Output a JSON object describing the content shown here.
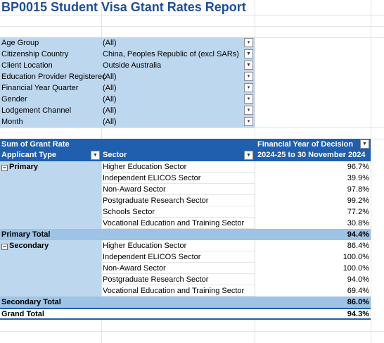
{
  "title": "BP0015 Student Visa Gtant Rates Report",
  "filters": [
    {
      "label": "Age Group",
      "value": "(All)",
      "button_icon": "dropdown-arrow-icon"
    },
    {
      "label": "Citizenship Country",
      "value": "China, Peoples Republic of (excl SARs)",
      "button_icon": "filter-applied-icon"
    },
    {
      "label": "Client Location",
      "value": "Outside Australia",
      "button_icon": "filter-applied-icon"
    },
    {
      "label": "Education Provider Registerec",
      "value": "(All)",
      "button_icon": "dropdown-arrow-icon"
    },
    {
      "label": "Financial Year Quarter",
      "value": "(All)",
      "button_icon": "dropdown-arrow-icon"
    },
    {
      "label": "Gender",
      "value": "(All)",
      "button_icon": "dropdown-arrow-icon"
    },
    {
      "label": "Lodgement Channel",
      "value": "(All)",
      "button_icon": "dropdown-arrow-icon"
    },
    {
      "label": "Month",
      "value": "(All)",
      "button_icon": "dropdown-arrow-icon"
    }
  ],
  "pivot": {
    "measure": "Sum of Grant Rate",
    "col_field": "Financial Year of Decision",
    "row_field_1": "Applicant Type",
    "row_field_2": "Sector",
    "col_value": "2024-25 to 30 November 2024",
    "groups": [
      {
        "name": "Primary",
        "rows": [
          {
            "sector": "Higher Education Sector",
            "value": "96.7%"
          },
          {
            "sector": "Independent ELICOS Sector",
            "value": "39.9%"
          },
          {
            "sector": "Non-Award Sector",
            "value": "97.8%"
          },
          {
            "sector": "Postgraduate Research Sector",
            "value": "99.2%"
          },
          {
            "sector": "Schools Sector",
            "value": "77.2%"
          },
          {
            "sector": "Vocational Education and Training Sector",
            "value": "30.8%"
          }
        ],
        "total_label": "Primary Total",
        "total_value": "94.4%"
      },
      {
        "name": "Secondary",
        "rows": [
          {
            "sector": "Higher Education Sector",
            "value": "86.4%"
          },
          {
            "sector": "Independent ELICOS Sector",
            "value": "100.0%"
          },
          {
            "sector": "Non-Award Sector",
            "value": "100.0%"
          },
          {
            "sector": "Postgraduate Research Sector",
            "value": "94.0%"
          },
          {
            "sector": "Vocational Education and Training Sector",
            "value": "69.4%"
          }
        ],
        "total_label": "Secondary Total",
        "total_value": "86.0%"
      }
    ],
    "grand_total_label": "Grand Total",
    "grand_total_value": "94.3%"
  },
  "colors": {
    "title": "#1f4e99",
    "header_bg": "#1f5fad",
    "filter_bg": "#bdd7ee",
    "total_bg": "#9dc3e6"
  }
}
